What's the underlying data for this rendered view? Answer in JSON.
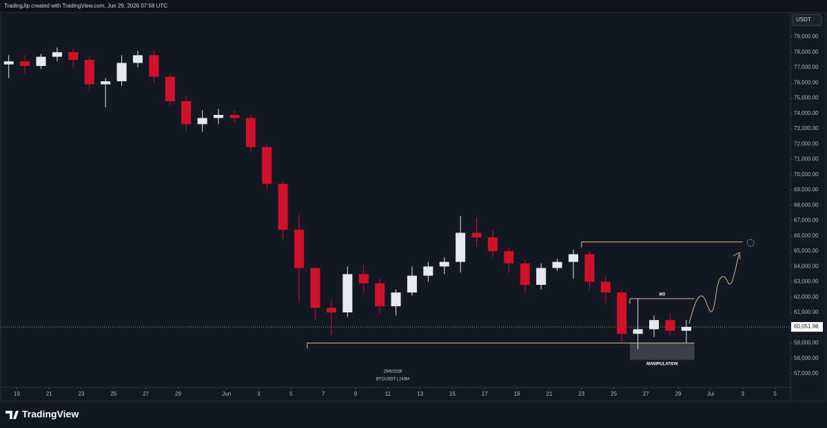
{
  "header": "TradingJip created with TradingView.com, Jun 29, 2026 07:58 UTC",
  "brand": "TradingView",
  "chart_data": {
    "type": "candlestick",
    "currency": "USDT",
    "date_label": "29/6/2026",
    "symbol_label": "BTCUSDT | 240M",
    "up_color": "#e6e8ee",
    "down_color": "#d1112b",
    "x": [
      "2026-05-18",
      "2026-05-19",
      "2026-05-20",
      "2026-05-21",
      "2026-05-22",
      "2026-05-23",
      "2026-05-24",
      "2026-05-25",
      "2026-05-26",
      "2026-05-27",
      "2026-05-28",
      "2026-05-29",
      "2026-05-30",
      "2026-05-31",
      "2026-06-01",
      "2026-06-02",
      "2026-06-03",
      "2026-06-04",
      "2026-06-05",
      "2026-06-06",
      "2026-06-07",
      "2026-06-08",
      "2026-06-09",
      "2026-06-10",
      "2026-06-11",
      "2026-06-12",
      "2026-06-13",
      "2026-06-14",
      "2026-06-15",
      "2026-06-16",
      "2026-06-17",
      "2026-06-18",
      "2026-06-19",
      "2026-06-20",
      "2026-06-21",
      "2026-06-22",
      "2026-06-23",
      "2026-06-24",
      "2026-06-25",
      "2026-06-26",
      "2026-06-27",
      "2026-06-28",
      "2026-06-29"
    ],
    "open": [
      77200,
      77400,
      77100,
      77700,
      78000,
      77500,
      75900,
      76100,
      77300,
      77800,
      76400,
      74800,
      73300,
      73700,
      73900,
      73700,
      71800,
      69400,
      66400,
      63900,
      61300,
      61000,
      63500,
      62900,
      61400,
      62300,
      63400,
      64000,
      64300,
      66200,
      65900,
      65000,
      64200,
      62800,
      63900,
      64300,
      64800,
      63000,
      62300,
      59600,
      59900,
      60500,
      59800
    ],
    "high": [
      77800,
      77800,
      77900,
      78300,
      78200,
      77700,
      76300,
      77800,
      78100,
      78100,
      76600,
      75100,
      74200,
      74300,
      74200,
      73900,
      72000,
      69600,
      67400,
      64000,
      61800,
      64000,
      64100,
      63200,
      62500,
      64000,
      64300,
      64600,
      67300,
      67200,
      66400,
      65200,
      64400,
      64200,
      64500,
      65100,
      65000,
      63300,
      62500,
      61900,
      60800,
      60900,
      60500
    ],
    "low": [
      76300,
      76600,
      76900,
      77400,
      77000,
      75500,
      74400,
      75800,
      77000,
      76000,
      74500,
      72900,
      72800,
      73300,
      73400,
      71500,
      69000,
      65800,
      61700,
      60500,
      59500,
      60700,
      62300,
      60900,
      60800,
      62100,
      63000,
      63500,
      63600,
      65300,
      64600,
      63600,
      62300,
      62500,
      63700,
      63200,
      62500,
      61600,
      59000,
      58600,
      59400,
      59500,
      59000
    ],
    "close": [
      77400,
      77100,
      77700,
      78000,
      77500,
      75900,
      76100,
      77300,
      77800,
      76400,
      74800,
      73300,
      73700,
      73900,
      73700,
      71800,
      69400,
      66400,
      63900,
      61300,
      61000,
      63500,
      62900,
      61400,
      62300,
      63400,
      64000,
      64300,
      66200,
      65900,
      65000,
      64200,
      62800,
      63900,
      64300,
      64800,
      63000,
      62300,
      59600,
      59900,
      60500,
      59800,
      60052
    ],
    "last_price": {
      "value": 60051.98,
      "label": "60,051.98"
    },
    "xlim": [
      "2026-05-18",
      "2026-07-06"
    ],
    "ylim": [
      56100,
      80600
    ],
    "xticks": [
      {
        "value": "2026-05-19",
        "label": "19"
      },
      {
        "value": "2026-05-21",
        "label": "21"
      },
      {
        "value": "2026-05-23",
        "label": "23"
      },
      {
        "value": "2026-05-25",
        "label": "25"
      },
      {
        "value": "2026-05-27",
        "label": "27"
      },
      {
        "value": "2026-05-29",
        "label": "29"
      },
      {
        "value": "2026-06-01",
        "label": "Jun"
      },
      {
        "value": "2026-06-03",
        "label": "3"
      },
      {
        "value": "2026-06-05",
        "label": "5"
      },
      {
        "value": "2026-06-07",
        "label": "7"
      },
      {
        "value": "2026-06-09",
        "label": "9"
      },
      {
        "value": "2026-06-11",
        "label": "11"
      },
      {
        "value": "2026-06-13",
        "label": "13"
      },
      {
        "value": "2026-06-15",
        "label": "15"
      },
      {
        "value": "2026-06-17",
        "label": "17"
      },
      {
        "value": "2026-06-19",
        "label": "19"
      },
      {
        "value": "2026-06-21",
        "label": "21"
      },
      {
        "value": "2026-06-23",
        "label": "23"
      },
      {
        "value": "2026-06-25",
        "label": "25"
      },
      {
        "value": "2026-06-27",
        "label": "27"
      },
      {
        "value": "2026-06-29",
        "label": "29"
      },
      {
        "value": "2026-07-01",
        "label": "Jul"
      },
      {
        "value": "2026-07-03",
        "label": "3"
      },
      {
        "value": "2026-07-05",
        "label": "5"
      }
    ],
    "yticks": [
      {
        "value": 57000,
        "label": "57,000.00"
      },
      {
        "value": 58000,
        "label": "58,000.00"
      },
      {
        "value": 59000,
        "label": "59,000.00"
      },
      {
        "value": 60000,
        "label": "60,000.00"
      },
      {
        "value": 61000,
        "label": "61,000.00"
      },
      {
        "value": 62000,
        "label": "62,000.00"
      },
      {
        "value": 63000,
        "label": "63,000.00"
      },
      {
        "value": 64000,
        "label": "64,000.00"
      },
      {
        "value": 65000,
        "label": "65,000.00"
      },
      {
        "value": 66000,
        "label": "66,000.00"
      },
      {
        "value": 67000,
        "label": "67,000.00"
      },
      {
        "value": 68000,
        "label": "68,000.00"
      },
      {
        "value": 69000,
        "label": "69,000.00"
      },
      {
        "value": 70000,
        "label": "70,000.00"
      },
      {
        "value": 71000,
        "label": "71,000.00"
      },
      {
        "value": 72000,
        "label": "72,000.00"
      },
      {
        "value": 73000,
        "label": "73,000.00"
      },
      {
        "value": 74000,
        "label": "74,000.00"
      },
      {
        "value": 75000,
        "label": "75,000.00"
      },
      {
        "value": 76000,
        "label": "76,000.00"
      },
      {
        "value": 77000,
        "label": "77,000.00"
      },
      {
        "value": 78000,
        "label": "78,000.00"
      },
      {
        "value": 79000,
        "label": "79,000.00"
      }
    ],
    "levels": [
      {
        "value": 59000,
        "from": "2026-06-06",
        "to": "2026-06-29"
      },
      {
        "value": 65600,
        "from": "2026-06-23",
        "to": "2026-07-02"
      },
      {
        "value": 61900,
        "from": "2026-06-26",
        "to": "2026-06-29",
        "label": "MS"
      }
    ],
    "zones": [
      {
        "from": "2026-06-26",
        "to": "2026-06-29",
        "low": 57900,
        "high": 59000,
        "label": "MANIPULATION"
      }
    ]
  }
}
